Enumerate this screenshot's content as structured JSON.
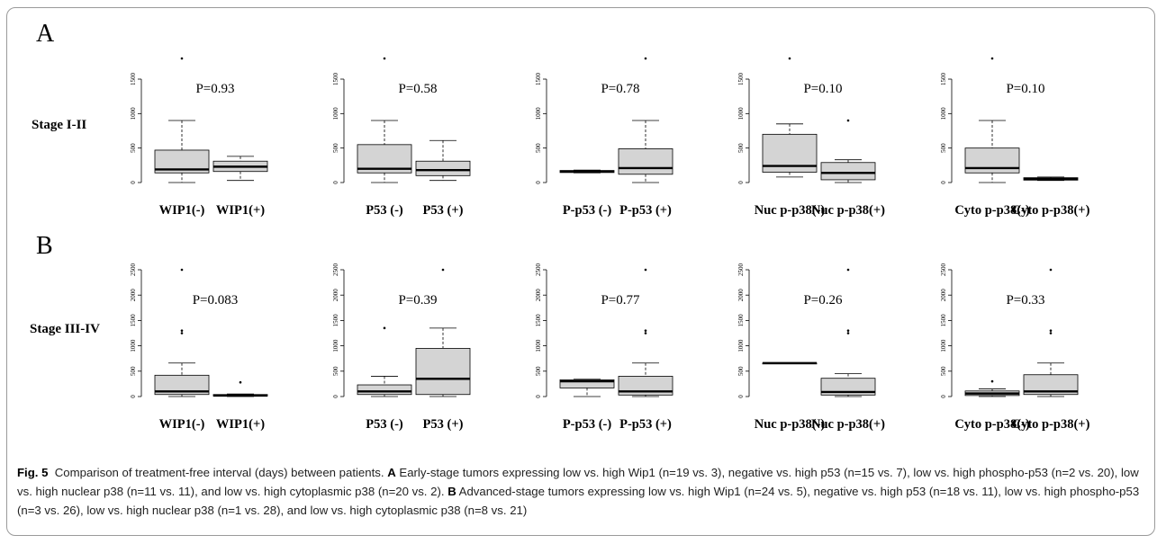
{
  "panel_a": {
    "letter": "A",
    "stage": "Stage I-II"
  },
  "panel_b": {
    "letter": "B",
    "stage": "Stage III-IV"
  },
  "caption": {
    "fig_label": "Fig. 5",
    "intro": "Comparison of treatment-free interval (days) between patients.",
    "a_label": "A",
    "a_text": "Early-stage tumors expressing low vs. high Wip1 (n=19 vs. 3), negative vs. high p53 (n=15 vs. 7), low vs. high phospho-p53 (n=2 vs. 20), low vs. high nuclear p38 (n=11 vs. 11), and low vs. high cytoplasmic p38 (n=20 vs. 2).",
    "b_label": "B",
    "b_text": "Advanced-stage tumors expressing low vs. high Wip1 (n=24 vs. 5), negative vs. high p53 (n=18 vs. 11), low vs. high phospho-p53 (n=3 vs. 26), low vs. high nuclear p38 (n=1 vs. 28), and low vs. high cytoplasmic p38 (n=8 vs. 21)"
  },
  "chart_data": [
    {
      "type": "boxplot",
      "stage": "Stage I-II",
      "p_label": "P=0.93",
      "ylim": [
        0,
        1800
      ],
      "yticks": [
        0,
        500,
        1000,
        1500
      ],
      "groups": [
        {
          "label": "WIP1(-)",
          "whisker_low": 0,
          "q1": 140,
          "median": 190,
          "q3": 470,
          "whisker_high": 900,
          "outliers": [
            1800
          ]
        },
        {
          "label": "WIP1(+)",
          "whisker_low": 30,
          "q1": 160,
          "median": 230,
          "q3": 310,
          "whisker_high": 380,
          "outliers": []
        }
      ]
    },
    {
      "type": "boxplot",
      "stage": "Stage I-II",
      "p_label": "P=0.58",
      "ylim": [
        0,
        1800
      ],
      "yticks": [
        0,
        500,
        1000,
        1500
      ],
      "groups": [
        {
          "label": "P53 (-)",
          "whisker_low": 0,
          "q1": 140,
          "median": 200,
          "q3": 550,
          "whisker_high": 900,
          "outliers": [
            1800
          ]
        },
        {
          "label": "P53 (+)",
          "whisker_low": 30,
          "q1": 100,
          "median": 180,
          "q3": 310,
          "whisker_high": 610,
          "outliers": []
        }
      ]
    },
    {
      "type": "boxplot",
      "stage": "Stage I-II",
      "p_label": "P=0.78",
      "ylim": [
        0,
        1800
      ],
      "yticks": [
        0,
        500,
        1000,
        1500
      ],
      "groups": [
        {
          "label": "P-p53 (-)",
          "whisker_low": 140,
          "q1": 145,
          "median": 160,
          "q3": 175,
          "whisker_high": 180,
          "outliers": []
        },
        {
          "label": "P-p53 (+)",
          "whisker_low": 0,
          "q1": 120,
          "median": 210,
          "q3": 490,
          "whisker_high": 900,
          "outliers": [
            1800
          ]
        }
      ]
    },
    {
      "type": "boxplot",
      "stage": "Stage I-II",
      "p_label": "P=0.10",
      "ylim": [
        0,
        1800
      ],
      "yticks": [
        0,
        500,
        1000,
        1500
      ],
      "groups": [
        {
          "label": "Nuc p-p38(-)",
          "whisker_low": 80,
          "q1": 150,
          "median": 240,
          "q3": 700,
          "whisker_high": 850,
          "outliers": [
            1800
          ]
        },
        {
          "label": "Nuc p-p38(+)",
          "whisker_low": 0,
          "q1": 40,
          "median": 140,
          "q3": 290,
          "whisker_high": 330,
          "outliers": [
            900
          ]
        }
      ]
    },
    {
      "type": "boxplot",
      "stage": "Stage I-II",
      "p_label": "P=0.10",
      "ylim": [
        0,
        1800
      ],
      "yticks": [
        0,
        500,
        1000,
        1500
      ],
      "groups": [
        {
          "label": "Cyto p-p38(-)",
          "whisker_low": 0,
          "q1": 140,
          "median": 210,
          "q3": 500,
          "whisker_high": 900,
          "outliers": [
            1800
          ]
        },
        {
          "label": "Cyto p-p38(+)",
          "whisker_low": 30,
          "q1": 35,
          "median": 50,
          "q3": 70,
          "whisker_high": 80,
          "outliers": []
        }
      ]
    },
    {
      "type": "boxplot",
      "stage": "Stage III-IV",
      "p_label": "P=0.083",
      "ylim": [
        0,
        2500
      ],
      "yticks": [
        0,
        500,
        1000,
        1500,
        2000,
        2500
      ],
      "groups": [
        {
          "label": "WIP1(-)",
          "whisker_low": 0,
          "q1": 40,
          "median": 100,
          "q3": 420,
          "whisker_high": 660,
          "outliers": [
            1250,
            1300,
            2500
          ]
        },
        {
          "label": "WIP1(+)",
          "whisker_low": 0,
          "q1": 10,
          "median": 20,
          "q3": 40,
          "whisker_high": 50,
          "outliers": [
            280
          ]
        }
      ]
    },
    {
      "type": "boxplot",
      "stage": "Stage III-IV",
      "p_label": "P=0.39",
      "ylim": [
        0,
        2500
      ],
      "yticks": [
        0,
        500,
        1000,
        1500,
        2000,
        2500
      ],
      "groups": [
        {
          "label": "P53 (-)",
          "whisker_low": 0,
          "q1": 40,
          "median": 100,
          "q3": 230,
          "whisker_high": 400,
          "outliers": [
            1350
          ]
        },
        {
          "label": "P53 (+)",
          "whisker_low": 0,
          "q1": 40,
          "median": 350,
          "q3": 950,
          "whisker_high": 1350,
          "outliers": [
            2500
          ]
        }
      ]
    },
    {
      "type": "boxplot",
      "stage": "Stage III-IV",
      "p_label": "P=0.77",
      "ylim": [
        0,
        2500
      ],
      "yticks": [
        0,
        500,
        1000,
        1500,
        2000,
        2500
      ],
      "groups": [
        {
          "label": "P-p53 (-)",
          "whisker_low": 0,
          "q1": 170,
          "median": 300,
          "q3": 330,
          "whisker_high": 340,
          "outliers": []
        },
        {
          "label": "P-p53 (+)",
          "whisker_low": 0,
          "q1": 30,
          "median": 100,
          "q3": 400,
          "whisker_high": 660,
          "outliers": [
            1250,
            1300,
            2500
          ]
        }
      ]
    },
    {
      "type": "boxplot",
      "stage": "Stage III-IV",
      "p_label": "P=0.26",
      "ylim": [
        0,
        2500
      ],
      "yticks": [
        0,
        500,
        1000,
        1500,
        2000,
        2500
      ],
      "groups": [
        {
          "label": "Nuc p-p38(-)",
          "whisker_low": 660,
          "q1": 660,
          "median": 660,
          "q3": 660,
          "whisker_high": 660,
          "outliers": []
        },
        {
          "label": "Nuc p-p38(+)",
          "whisker_low": 0,
          "q1": 30,
          "median": 90,
          "q3": 360,
          "whisker_high": 450,
          "outliers": [
            1250,
            1300,
            2500
          ]
        }
      ]
    },
    {
      "type": "boxplot",
      "stage": "Stage III-IV",
      "p_label": "P=0.33",
      "ylim": [
        0,
        2500
      ],
      "yticks": [
        0,
        500,
        1000,
        1500,
        2000,
        2500
      ],
      "groups": [
        {
          "label": "Cyto p-p38(-)",
          "whisker_low": 0,
          "q1": 20,
          "median": 60,
          "q3": 110,
          "whisker_high": 150,
          "outliers": [
            300
          ]
        },
        {
          "label": "Cyto p-p38(+)",
          "whisker_low": 0,
          "q1": 40,
          "median": 100,
          "q3": 430,
          "whisker_high": 660,
          "outliers": [
            1250,
            1300,
            2500
          ]
        }
      ]
    }
  ]
}
